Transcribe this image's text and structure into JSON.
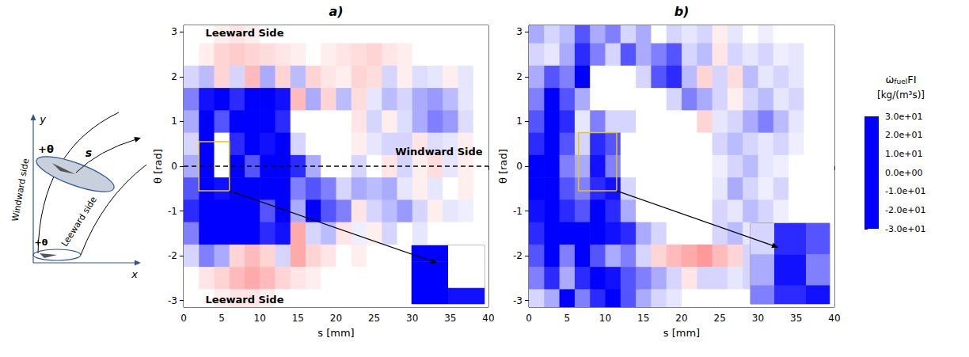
{
  "chart_data": {
    "type": "heatmap",
    "xlabel": "s [mm]",
    "ylabel": "θ [rad]",
    "xlim": [
      0,
      40
    ],
    "xticks": [
      0,
      5,
      10,
      15,
      20,
      25,
      30,
      35,
      40
    ],
    "ylim": [
      -3.15,
      3.15
    ],
    "yticks": [
      -3,
      -2,
      -1,
      0,
      1,
      2,
      3
    ],
    "s_edges": [
      0,
      2,
      4,
      6,
      8,
      10,
      12,
      14,
      16,
      18,
      20,
      22,
      24,
      26,
      28,
      30,
      32,
      34,
      36,
      38,
      40
    ],
    "theta_edges": [
      3.25,
      2.75,
      2.25,
      1.75,
      1.25,
      0.75,
      0.25,
      -0.25,
      -0.75,
      -1.25,
      -1.75,
      -2.25,
      -2.75,
      -3.25
    ],
    "panels": [
      {
        "title": "a)",
        "values": [
          [
            0,
            0,
            2,
            3,
            2,
            0,
            0,
            0,
            0,
            0,
            0,
            0,
            0,
            0,
            0,
            0,
            0,
            0,
            0,
            0
          ],
          [
            0,
            2,
            5,
            6,
            5,
            4,
            3,
            2,
            0,
            2,
            3,
            4,
            5,
            3,
            2,
            0,
            0,
            0,
            0,
            0
          ],
          [
            -5,
            -8,
            5,
            -5,
            8,
            -10,
            5,
            -8,
            5,
            3,
            2,
            5,
            4,
            -5,
            2,
            -4,
            -3,
            2,
            -3,
            0
          ],
          [
            -15,
            -28,
            -30,
            -25,
            -30,
            -30,
            -28,
            8,
            -10,
            5,
            -8,
            4,
            -3,
            -8,
            -5,
            -10,
            -12,
            -8,
            -3,
            0
          ],
          [
            -10,
            -30,
            -20,
            -30,
            -30,
            -30,
            -25,
            0,
            0,
            0,
            0,
            3,
            -5,
            2,
            -4,
            -10,
            -15,
            -12,
            -4,
            0
          ],
          [
            -5,
            -30,
            0,
            -25,
            -30,
            -28,
            -30,
            -5,
            0,
            0,
            0,
            2,
            -3,
            -5,
            -5,
            3,
            -4,
            -3,
            2,
            0
          ],
          [
            -10,
            -30,
            0,
            -30,
            -20,
            -30,
            -30,
            -25,
            -10,
            0,
            0,
            -5,
            0,
            3,
            -5,
            2,
            4,
            -3,
            2,
            0
          ],
          [
            -20,
            -30,
            -28,
            -30,
            -30,
            -30,
            -30,
            -15,
            -20,
            -15,
            -5,
            -10,
            -8,
            -10,
            -3,
            2,
            -3,
            0,
            2,
            0
          ],
          [
            -25,
            -30,
            -30,
            -30,
            -30,
            -20,
            -30,
            -10,
            -30,
            -20,
            -15,
            3,
            -5,
            -8,
            -12,
            -5,
            2,
            -3,
            -2,
            0
          ],
          [
            -15,
            -30,
            -30,
            -30,
            -30,
            -25,
            -28,
            10,
            -5,
            -8,
            3,
            -2,
            2,
            -5,
            0,
            -3,
            0,
            0,
            0,
            0
          ],
          [
            -5,
            -15,
            -10,
            5,
            8,
            5,
            -5,
            10,
            5,
            3,
            0,
            2,
            0,
            0,
            0,
            0,
            0,
            0,
            0,
            0
          ],
          [
            0,
            3,
            5,
            8,
            10,
            8,
            5,
            3,
            2,
            0,
            0,
            0,
            0,
            0,
            0,
            0,
            0,
            0,
            0,
            0
          ],
          [
            0,
            0,
            2,
            3,
            3,
            2,
            0,
            0,
            0,
            0,
            0,
            0,
            0,
            0,
            0,
            0,
            0,
            0,
            0,
            0
          ]
        ],
        "annotations": [
          "Leeward Side",
          "Leeward Side",
          "Windward Side"
        ],
        "reference_line": {
          "theta": 0,
          "line_style": "dashed"
        },
        "zoom_box": {
          "s": [
            2,
            6
          ],
          "theta": [
            -0.55,
            0.55
          ]
        }
      },
      {
        "title": "b)",
        "values": [
          [
            -10,
            -5,
            -8,
            -20,
            -10,
            -15,
            -5,
            -10,
            0,
            -5,
            -3,
            -5,
            2,
            -3,
            0,
            -2,
            0,
            0,
            0,
            0
          ],
          [
            -5,
            -3,
            -10,
            -25,
            -15,
            -5,
            -20,
            -10,
            -15,
            -20,
            -5,
            -8,
            3,
            -5,
            -3,
            -5,
            -2,
            -3,
            0,
            0
          ],
          [
            -10,
            -20,
            -15,
            -30,
            0,
            0,
            0,
            -5,
            -20,
            -25,
            -8,
            5,
            -5,
            4,
            -8,
            -3,
            -5,
            -3,
            0,
            0
          ],
          [
            -15,
            -30,
            -20,
            -10,
            0,
            0,
            0,
            0,
            0,
            -5,
            -15,
            -10,
            -5,
            2,
            -5,
            -8,
            -3,
            -5,
            0,
            0
          ],
          [
            -20,
            -30,
            -25,
            -3,
            -15,
            -5,
            -5,
            0,
            0,
            0,
            0,
            5,
            -3,
            -5,
            -10,
            -15,
            -8,
            -3,
            0,
            0
          ],
          [
            -25,
            -30,
            -20,
            -5,
            -25,
            -20,
            0,
            0,
            0,
            0,
            0,
            0,
            -5,
            -8,
            -5,
            -3,
            -5,
            -2,
            0,
            0
          ],
          [
            -30,
            -30,
            -15,
            -10,
            -28,
            -15,
            0,
            0,
            0,
            0,
            0,
            0,
            -2,
            -5,
            -8,
            -3,
            -2,
            0,
            0,
            0
          ],
          [
            -30,
            -30,
            -20,
            -15,
            -25,
            -28,
            -5,
            0,
            0,
            0,
            0,
            0,
            -3,
            -10,
            -5,
            -2,
            -5,
            0,
            0,
            0
          ],
          [
            -28,
            -30,
            -25,
            -20,
            -30,
            -25,
            -10,
            0,
            0,
            0,
            0,
            0,
            -5,
            -3,
            -8,
            -5,
            -2,
            0,
            0,
            0
          ],
          [
            -25,
            -30,
            -30,
            -30,
            -30,
            -28,
            -25,
            -10,
            -5,
            0,
            0,
            0,
            -5,
            -8,
            -3,
            -5,
            0,
            -2,
            0,
            0
          ],
          [
            -20,
            -30,
            -15,
            -30,
            -20,
            -10,
            -15,
            -5,
            5,
            8,
            10,
            12,
            8,
            5,
            -5,
            -8,
            -5,
            -2,
            0,
            0
          ],
          [
            -15,
            -25,
            -10,
            -25,
            -30,
            -28,
            -20,
            -15,
            -10,
            -5,
            3,
            -5,
            -5,
            -3,
            -5,
            -3,
            0,
            0,
            0,
            0
          ],
          [
            -5,
            -10,
            -30,
            -15,
            -25,
            -30,
            -20,
            -10,
            -5,
            -3,
            0,
            0,
            0,
            0,
            0,
            0,
            0,
            0,
            0,
            0
          ]
        ],
        "zoom_box": {
          "s": [
            6.5,
            11.5
          ],
          "theta": [
            -0.55,
            0.75
          ]
        }
      }
    ],
    "colorbar": {
      "symbol": "ω̇",
      "subscript": "fuel",
      "suffix": "FI",
      "units": "[kg/(m³s)]",
      "range": [
        -30,
        30
      ],
      "ticks": [
        {
          "value": -30,
          "label": "-3.0e+01"
        },
        {
          "value": -20,
          "label": "-2.0e+01"
        },
        {
          "value": -10,
          "label": "-1.0e+01"
        },
        {
          "value": 0,
          "label": "0.0e+00"
        },
        {
          "value": 10,
          "label": "1.0e+01"
        },
        {
          "value": 20,
          "label": "2.0e+01"
        },
        {
          "value": 30,
          "label": "3.0e+01"
        }
      ],
      "colors": [
        "#0000ff",
        "#ffffff",
        "#ff0000"
      ]
    },
    "schematic": {
      "y_axis": "y",
      "x_axis": "x",
      "path": "s",
      "angle": "+θ",
      "windward": "Windward side",
      "leeward": "Leeward side"
    }
  }
}
